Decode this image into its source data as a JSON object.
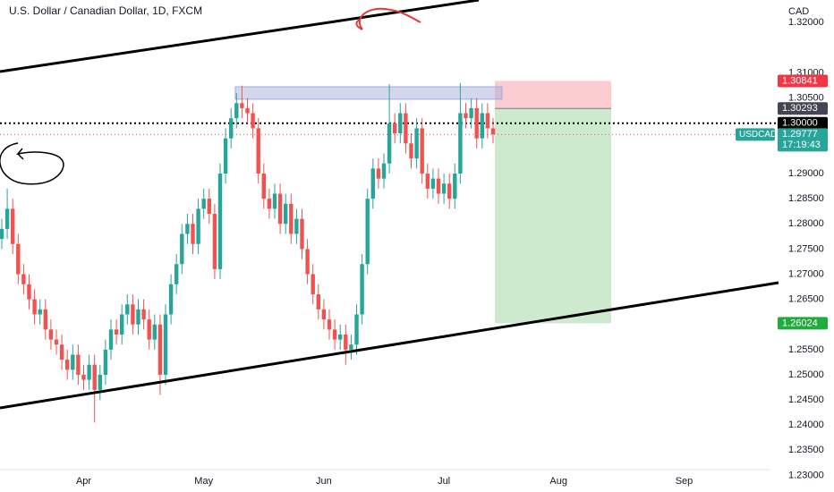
{
  "chart_data": {
    "type": "candlestick",
    "title": "U.S. Dollar / Canadian Dollar, 1D, FXCM",
    "y_axis_label": "CAD",
    "up_color": "#26a69a",
    "down_color": "#ef5350",
    "ylim": [
      1.2267,
      1.3245
    ],
    "yticks": [
      {
        "value": 1.32,
        "label": "1.32000"
      },
      {
        "value": 1.31,
        "label": "1.31000"
      },
      {
        "value": 1.305,
        "label": "1.30500"
      },
      {
        "value": 1.29,
        "label": "1.29000"
      },
      {
        "value": 1.285,
        "label": "1.28500"
      },
      {
        "value": 1.28,
        "label": "1.28000"
      },
      {
        "value": 1.275,
        "label": "1.27500"
      },
      {
        "value": 1.27,
        "label": "1.27000"
      },
      {
        "value": 1.265,
        "label": "1.26500"
      },
      {
        "value": 1.255,
        "label": "1.25500"
      },
      {
        "value": 1.25,
        "label": "1.25000"
      },
      {
        "value": 1.245,
        "label": "1.24500"
      },
      {
        "value": 1.24,
        "label": "1.24000"
      },
      {
        "value": 1.235,
        "label": "1.23500"
      },
      {
        "value": 1.23,
        "label": "1.23000"
      }
    ],
    "categories": [
      null,
      null,
      null,
      null,
      null,
      null,
      null,
      null,
      null,
      null,
      null,
      null,
      null,
      null,
      null,
      "Apr",
      null,
      null,
      null,
      null,
      null,
      null,
      null,
      null,
      null,
      null,
      null,
      null,
      null,
      null,
      null,
      null,
      null,
      null,
      null,
      null,
      null,
      "May",
      null,
      null,
      null,
      null,
      null,
      null,
      null,
      null,
      null,
      null,
      null,
      null,
      null,
      null,
      null,
      null,
      null,
      null,
      null,
      null,
      null,
      "Jun",
      null,
      null,
      null,
      null,
      null,
      null,
      null,
      null,
      null,
      null,
      null,
      null,
      null,
      null,
      null,
      null,
      null,
      null,
      null,
      null,
      null,
      "Jul",
      null,
      null,
      null,
      null,
      null,
      null,
      null,
      null,
      null,
      null,
      null,
      null,
      null,
      null,
      null,
      null,
      null,
      null,
      null,
      null,
      "Aug",
      null,
      null,
      null,
      null,
      null,
      null,
      null,
      null,
      null,
      null,
      null,
      null,
      null,
      null,
      null,
      null,
      null,
      null,
      null,
      null,
      null,
      null,
      "Sep",
      null,
      null,
      null,
      null,
      null,
      null,
      null,
      null,
      null,
      null,
      null,
      null,
      null,
      null,
      null
    ],
    "open": [
      1.277,
      1.279,
      1.283,
      1.276,
      1.27,
      1.268,
      1.265,
      1.262,
      1.263,
      1.259,
      1.257,
      1.256,
      1.253,
      1.251,
      1.254,
      1.25,
      1.249,
      1.252,
      1.247,
      1.25,
      1.255,
      1.259,
      1.258,
      1.262,
      1.264,
      1.26,
      1.263,
      1.261,
      1.257,
      1.26,
      1.25,
      1.262,
      1.268,
      1.272,
      1.278,
      1.28,
      1.276,
      1.283,
      1.285,
      1.282,
      1.271,
      1.29,
      1.297,
      1.301,
      1.304,
      1.303,
      1.302,
      1.299,
      1.29,
      1.285,
      1.283,
      1.286,
      1.28,
      1.284,
      1.278,
      1.281,
      1.275,
      1.27,
      1.266,
      1.263,
      1.261,
      1.259,
      1.257,
      1.258,
      1.255,
      1.256,
      1.262,
      1.272,
      1.285,
      1.291,
      1.289,
      1.292,
      1.3,
      1.298,
      1.302,
      1.296,
      1.293,
      1.299,
      1.29,
      1.287,
      1.289,
      1.286,
      1.288,
      1.285,
      1.29,
      1.302,
      1.301,
      1.303,
      1.297,
      1.302,
      1.299,
      null,
      null,
      null,
      null,
      null,
      null,
      null,
      null,
      null,
      null,
      null,
      null,
      null,
      null,
      null,
      null,
      null,
      null,
      null,
      null,
      null,
      null,
      null,
      null,
      null,
      null,
      null,
      null,
      null,
      null,
      null,
      null,
      null,
      null,
      null,
      null,
      null,
      null,
      null,
      null,
      null,
      null,
      null,
      null,
      null,
      null,
      null,
      null,
      null,
      null
    ],
    "high": [
      1.281,
      1.287,
      1.285,
      1.278,
      1.272,
      1.27,
      1.267,
      1.265,
      1.265,
      1.261,
      1.259,
      1.258,
      1.255,
      1.256,
      1.256,
      1.252,
      1.254,
      1.254,
      1.252,
      1.257,
      1.261,
      1.261,
      1.264,
      1.266,
      1.266,
      1.265,
      1.265,
      1.263,
      1.262,
      1.262,
      1.264,
      1.27,
      1.274,
      1.28,
      1.282,
      1.282,
      1.285,
      1.287,
      1.287,
      1.284,
      1.292,
      1.299,
      1.303,
      1.306,
      1.3075,
      1.305,
      1.304,
      1.301,
      1.292,
      1.287,
      1.288,
      1.288,
      1.286,
      1.286,
      1.283,
      1.283,
      1.277,
      1.272,
      1.268,
      1.265,
      1.263,
      1.261,
      1.26,
      1.26,
      1.258,
      1.264,
      1.274,
      1.287,
      1.293,
      1.293,
      1.294,
      1.3078,
      1.302,
      1.304,
      1.304,
      1.298,
      1.301,
      1.301,
      1.292,
      1.291,
      1.291,
      1.29,
      1.29,
      1.292,
      1.308,
      1.304,
      1.305,
      1.305,
      1.304,
      1.304,
      1.301,
      null,
      null,
      null,
      null,
      null,
      null,
      null,
      null,
      null,
      null,
      null,
      null,
      null,
      null,
      null,
      null,
      null,
      null,
      null,
      null,
      null,
      null,
      null,
      null,
      null,
      null,
      null,
      null,
      null,
      null,
      null,
      null,
      null,
      null,
      null,
      null,
      null,
      null,
      null,
      null,
      null,
      null,
      null,
      null,
      null,
      null,
      null,
      null,
      null,
      null
    ],
    "low": [
      1.275,
      1.277,
      1.274,
      1.268,
      1.266,
      1.263,
      1.26,
      1.26,
      1.257,
      1.255,
      1.254,
      1.251,
      1.249,
      1.249,
      1.248,
      1.247,
      1.247,
      1.2405,
      1.245,
      1.248,
      1.253,
      1.256,
      1.256,
      1.26,
      1.258,
      1.258,
      1.259,
      1.255,
      1.255,
      1.246,
      1.248,
      1.26,
      1.266,
      1.27,
      1.276,
      1.274,
      1.274,
      1.281,
      1.28,
      1.269,
      1.269,
      1.288,
      1.295,
      1.299,
      1.301,
      1.3,
      1.297,
      1.288,
      1.283,
      1.281,
      1.281,
      1.278,
      1.278,
      1.276,
      1.276,
      1.273,
      1.268,
      1.264,
      1.261,
      1.259,
      1.257,
      1.255,
      1.255,
      1.252,
      1.253,
      1.254,
      1.26,
      1.27,
      1.283,
      1.287,
      1.287,
      1.29,
      1.296,
      1.296,
      1.294,
      1.291,
      1.291,
      1.288,
      1.285,
      1.285,
      1.284,
      1.284,
      1.283,
      1.283,
      1.288,
      1.299,
      1.299,
      1.295,
      1.295,
      1.297,
      1.296,
      null,
      null,
      null,
      null,
      null,
      null,
      null,
      null,
      null,
      null,
      null,
      null,
      null,
      null,
      null,
      null,
      null,
      null,
      null,
      null,
      null,
      null,
      null,
      null,
      null,
      null,
      null,
      null,
      null,
      null,
      null,
      null,
      null,
      null,
      null,
      null,
      null,
      null,
      null,
      null,
      null,
      null,
      null,
      null,
      null,
      null,
      null,
      null,
      null,
      null
    ],
    "close": [
      1.279,
      1.283,
      1.276,
      1.27,
      1.268,
      1.265,
      1.262,
      1.263,
      1.259,
      1.257,
      1.256,
      1.253,
      1.251,
      1.254,
      1.25,
      1.249,
      1.252,
      1.247,
      1.25,
      1.255,
      1.259,
      1.258,
      1.262,
      1.264,
      1.26,
      1.263,
      1.261,
      1.257,
      1.26,
      1.25,
      1.262,
      1.268,
      1.272,
      1.278,
      1.28,
      1.276,
      1.283,
      1.285,
      1.282,
      1.271,
      1.29,
      1.297,
      1.301,
      1.304,
      1.303,
      1.302,
      1.299,
      1.29,
      1.285,
      1.283,
      1.286,
      1.28,
      1.284,
      1.278,
      1.281,
      1.275,
      1.27,
      1.266,
      1.263,
      1.261,
      1.259,
      1.257,
      1.258,
      1.255,
      1.256,
      1.262,
      1.272,
      1.285,
      1.291,
      1.289,
      1.292,
      1.3,
      1.298,
      1.302,
      1.296,
      1.293,
      1.299,
      1.29,
      1.287,
      1.289,
      1.286,
      1.288,
      1.285,
      1.29,
      1.302,
      1.301,
      1.303,
      1.297,
      1.302,
      1.299,
      1.2978,
      null,
      null,
      null,
      null,
      null,
      null,
      null,
      null,
      null,
      null,
      null,
      null,
      null,
      null,
      null,
      null,
      null,
      null,
      null,
      null,
      null,
      null,
      null,
      null,
      null,
      null,
      null,
      null,
      null,
      null,
      null,
      null,
      null,
      null,
      null,
      null,
      null,
      null,
      null,
      null,
      null,
      null,
      null,
      null,
      null,
      null,
      null,
      null,
      null,
      null
    ],
    "zone": {
      "low": 1.30478,
      "high": 1.30725,
      "color": "#9fa8da"
    },
    "position": {
      "stop": 1.30841,
      "entry": 1.30293,
      "target": 1.26024
    },
    "price_tags": [
      {
        "value": 1.30841,
        "color": "#f23645"
      },
      {
        "value": 1.30293,
        "color": "#434651"
      },
      {
        "value": 1.3,
        "label": "1.30000",
        "color": "#000000"
      },
      {
        "value": 1.26024,
        "color": "#22ab3c"
      }
    ],
    "last_price": {
      "symbol": "USDCAD",
      "value": 1.29777,
      "countdown": "17:19:43",
      "color": "#26a69a"
    }
  }
}
